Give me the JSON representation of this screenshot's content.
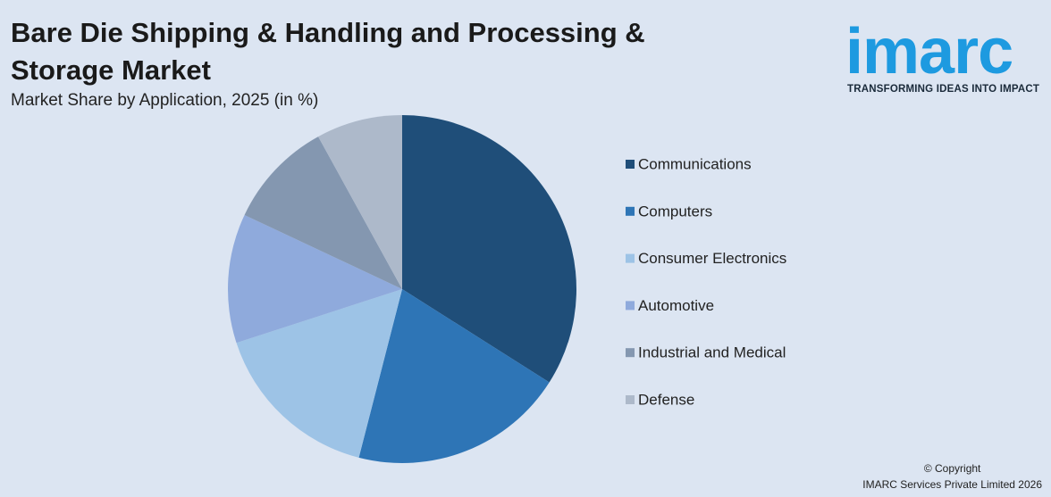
{
  "chart_data": {
    "type": "pie",
    "title": "Bare Die Shipping & Handling and Processing & Storage Market",
    "subtitle": "Market Share by Application, 2025 (in %)",
    "categories": [
      "Communications",
      "Computers",
      "Consumer Electronics",
      "Automotive",
      "Industrial and Medical",
      "Defense"
    ],
    "values": [
      34,
      20,
      16,
      12,
      10,
      8
    ],
    "colors": [
      "#1f4e79",
      "#2e75b6",
      "#9dc3e6",
      "#8faadc",
      "#8497b0",
      "#adb9ca"
    ],
    "legend": "right"
  },
  "logo": {
    "name": "imarc",
    "tagline": "TRANSFORMING IDEAS INTO IMPACT"
  },
  "footer": {
    "copyright": "© Copyright",
    "company": "IMARC Services Private Limited 2026"
  }
}
